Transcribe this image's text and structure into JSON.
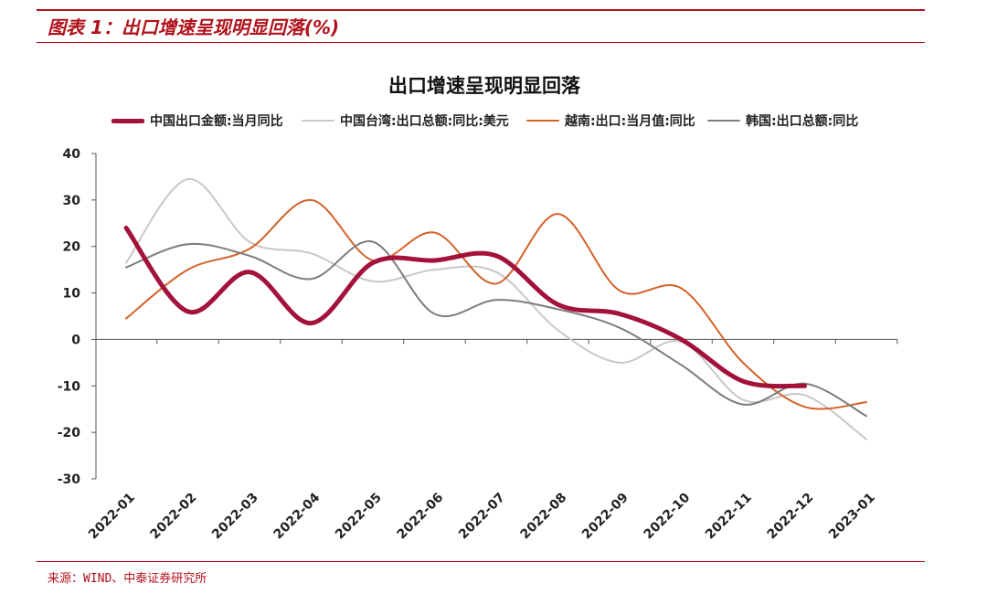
{
  "figure_title": "图表 1：出口增速呈现明显回落(%)",
  "source": "来源：WIND、中泰证券研究所",
  "chart_data": {
    "type": "line",
    "title": "出口增速呈现明显回落",
    "xlabel": "",
    "ylabel": "",
    "ylim": [
      -30,
      40
    ],
    "yticks": [
      "40",
      "30",
      "20",
      "10",
      "0",
      "-10",
      "-20",
      "-30"
    ],
    "grid": false,
    "legend_position": "top",
    "categories": [
      "2022-01",
      "2022-02",
      "2022-03",
      "2022-04",
      "2022-05",
      "2022-06",
      "2022-07",
      "2022-08",
      "2022-09",
      "2022-10",
      "2022-11",
      "2022-12",
      "2023-01"
    ],
    "series": [
      {
        "name": "中国台湾:出口总额:同比:美元",
        "color": "#c8c8c8",
        "width": 2,
        "values": [
          16.5,
          34.5,
          21.0,
          18.5,
          12.5,
          15.0,
          14.5,
          2.0,
          -5.0,
          -0.5,
          -13.0,
          -12.0,
          -21.5
        ]
      },
      {
        "name": "越南:出口:当月值:同比",
        "color": "#d2622a",
        "width": 2,
        "values": [
          4.5,
          15.0,
          19.5,
          30.0,
          17.0,
          23.0,
          12.0,
          27.0,
          10.5,
          11.0,
          -5.0,
          -14.5,
          -13.5
        ]
      },
      {
        "name": "韩国:出口总额:同比",
        "color": "#7d7d7d",
        "width": 2,
        "values": [
          15.5,
          20.5,
          18.0,
          13.0,
          21.0,
          5.5,
          8.5,
          6.5,
          2.5,
          -5.5,
          -14.0,
          -9.5,
          -16.5
        ]
      },
      {
        "name": "中国出口金额:当月同比",
        "color": "#a3123a",
        "width": 5,
        "values": [
          24.0,
          6.0,
          14.5,
          3.5,
          16.5,
          17.0,
          18.0,
          7.5,
          5.5,
          0.0,
          -9.0,
          -10.0,
          null
        ]
      }
    ]
  }
}
